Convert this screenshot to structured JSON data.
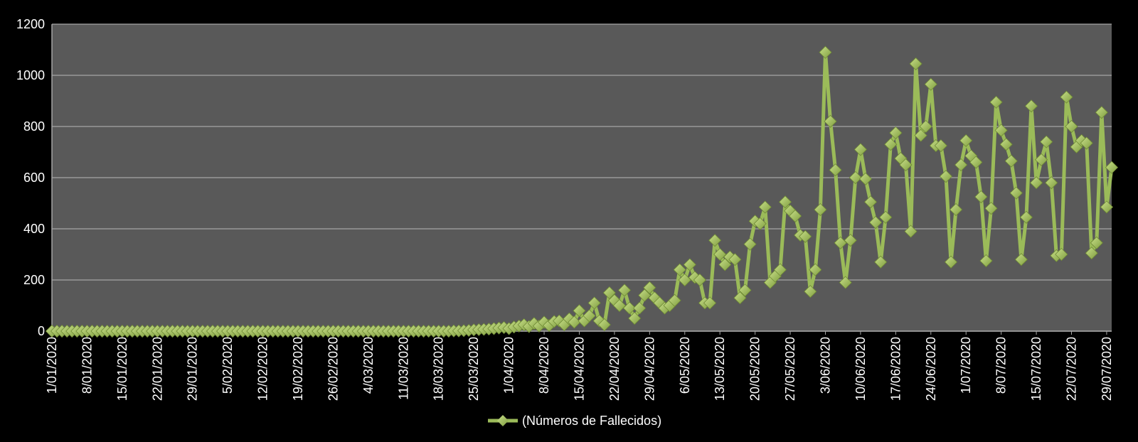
{
  "chart_data": {
    "type": "line",
    "title": "",
    "xlabel": "",
    "ylabel": "",
    "ylim": [
      0,
      1200
    ],
    "yticks": [
      0,
      200,
      400,
      600,
      800,
      1000,
      1200
    ],
    "grid": true,
    "legend_position": "bottom",
    "colors": {
      "background": "#000000",
      "plot_area": "#595959",
      "gridline": "#a6a6a6",
      "series": "#9bbb59",
      "series_marker": "#a9c96a",
      "text": "#ffffff"
    },
    "x_tick_labels": [
      "1/01/2020",
      "8/01/2020",
      "15/01/2020",
      "22/01/2020",
      "29/01/2020",
      "5/02/2020",
      "12/02/2020",
      "19/02/2020",
      "26/02/2020",
      "4/03/2020",
      "11/03/2020",
      "18/03/2020",
      "25/03/2020",
      "1/04/2020",
      "8/04/2020",
      "15/04/2020",
      "22/04/2020",
      "29/04/2020",
      "6/05/2020",
      "13/05/2020",
      "20/05/2020",
      "27/05/2020",
      "3/06/2020",
      "10/06/2020",
      "17/06/2020",
      "24/06/2020",
      "1/07/2020",
      "8/07/2020",
      "15/07/2020",
      "22/07/2020",
      "29/07/2020"
    ],
    "x_start": "1/01/2020",
    "x_end": "30/07/2020",
    "series": [
      {
        "name": "(Números de Fallecidos)",
        "values": [
          0,
          0,
          0,
          0,
          0,
          0,
          0,
          0,
          0,
          0,
          0,
          0,
          0,
          0,
          0,
          0,
          0,
          0,
          0,
          0,
          0,
          0,
          0,
          0,
          0,
          0,
          0,
          0,
          0,
          0,
          0,
          0,
          0,
          0,
          0,
          0,
          0,
          0,
          0,
          0,
          0,
          0,
          0,
          0,
          0,
          0,
          0,
          0,
          0,
          0,
          0,
          0,
          0,
          0,
          0,
          0,
          0,
          0,
          0,
          0,
          0,
          0,
          0,
          0,
          0,
          0,
          0,
          0,
          0,
          0,
          0,
          0,
          0,
          0,
          0,
          0,
          0,
          0,
          0,
          0,
          1,
          1,
          2,
          3,
          5,
          6,
          7,
          8,
          10,
          12,
          14,
          10,
          16,
          20,
          25,
          18,
          30,
          20,
          35,
          22,
          38,
          40,
          25,
          48,
          35,
          80,
          40,
          60,
          110,
          40,
          25,
          150,
          120,
          100,
          160,
          90,
          50,
          90,
          140,
          170,
          130,
          110,
          90,
          100,
          120,
          240,
          200,
          260,
          210,
          200,
          110,
          110,
          355,
          300,
          260,
          290,
          280,
          130,
          160,
          340,
          430,
          420,
          485,
          190,
          215,
          240,
          505,
          470,
          450,
          375,
          370,
          155,
          240,
          475,
          1090,
          820,
          630,
          345,
          190,
          355,
          600,
          710,
          595,
          505,
          425,
          270,
          445,
          730,
          775,
          675,
          650,
          390,
          1045,
          765,
          800,
          965,
          725,
          725,
          605,
          270,
          475,
          650,
          745,
          685,
          660,
          525,
          275,
          480,
          895,
          785,
          730,
          665,
          540,
          280,
          445,
          880,
          580,
          670,
          740,
          580,
          295,
          300,
          915,
          800,
          720,
          745,
          735,
          305,
          345,
          855,
          485,
          640
        ]
      }
    ]
  }
}
